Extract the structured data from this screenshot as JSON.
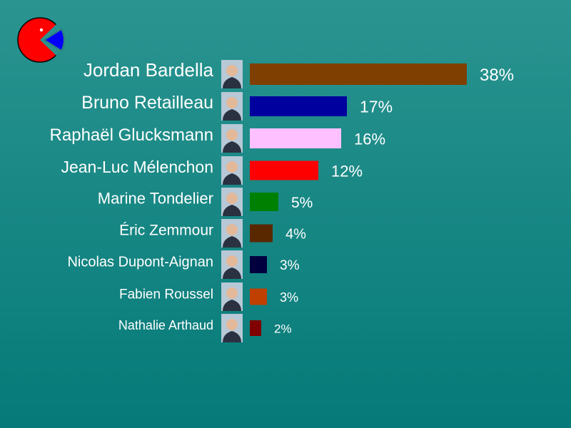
{
  "chart_data": {
    "type": "bar",
    "orientation": "horizontal",
    "categories": [
      "Jordan Bardella",
      "Bruno Retailleau",
      "Raphaël Glucksmann",
      "Jean-Luc Mélenchon",
      "Marine Tondelier",
      "Éric Zemmour",
      "Nicolas Dupont-Aignan",
      "Fabien Roussel",
      "Nathalie Arthaud"
    ],
    "values": [
      38,
      17,
      16,
      12,
      5,
      4,
      3,
      3,
      2
    ],
    "value_labels": [
      "38%",
      "17%",
      "16%",
      "12%",
      "5%",
      "4%",
      "3%",
      "3%",
      "2%"
    ],
    "colors": [
      "#7f3f00",
      "#00009f",
      "#ffc0ff",
      "#ff0000",
      "#008000",
      "#5a2800",
      "#00003f",
      "#c04000",
      "#800000"
    ],
    "unit": "%",
    "grid": false,
    "legend": "none"
  },
  "logo": {
    "icon": "pie-chart-icon",
    "colors": [
      "#ff0000",
      "#0000ff",
      "#2a9490"
    ]
  },
  "avatar": {
    "icon": "candidate-photo-icon"
  }
}
